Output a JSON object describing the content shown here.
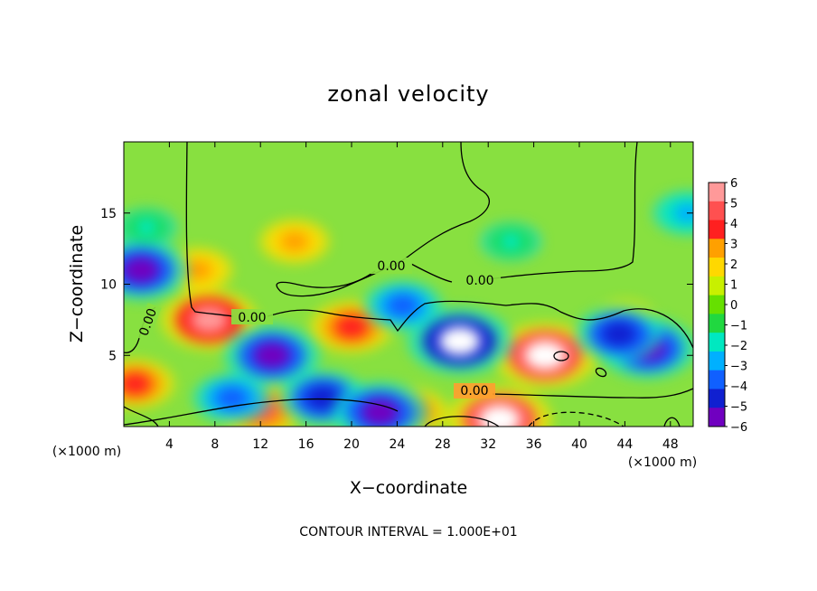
{
  "chart_data": {
    "type": "heatmap",
    "title": "zonal velocity",
    "xlabel": "X−coordinate",
    "ylabel": "Z−coordinate",
    "x_unit": "(×1000 m)",
    "z_unit": "(×1000 m)",
    "xlim": [
      0,
      50
    ],
    "ylim": [
      0,
      20
    ],
    "x_ticks": [
      4,
      8,
      12,
      16,
      20,
      24,
      28,
      32,
      36,
      40,
      44,
      48
    ],
    "y_ticks": [
      5,
      10,
      15
    ],
    "colorbar": {
      "min": -6,
      "max": 6,
      "ticks": [
        "6",
        "5",
        "4",
        "3",
        "2",
        "1",
        "0",
        "−1",
        "−2",
        "−3",
        "−4",
        "−5",
        "−6"
      ],
      "colors": [
        "#ff9999",
        "#ff5050",
        "#ff2020",
        "#ffa000",
        "#ffd800",
        "#c8f000",
        "#66e000",
        "#20d840",
        "#00e8c0",
        "#00b0ff",
        "#1060ff",
        "#1020d0",
        "#7000c0"
      ]
    },
    "contour_labels": [
      "0.00",
      "0.00",
      "0.00",
      "0.00",
      "0.00"
    ],
    "features": [
      {
        "name": "positive max",
        "x": 7.5,
        "z": 7.5,
        "value": 6
      },
      {
        "name": "positive",
        "x": 6.5,
        "z": 11,
        "value": 3
      },
      {
        "name": "positive",
        "x": 15,
        "z": 13,
        "value": 3
      },
      {
        "name": "positive",
        "x": 20,
        "z": 7,
        "value": 4.5
      },
      {
        "name": "positive",
        "x": 12,
        "z": 1.2,
        "value": 5
      },
      {
        "name": "positive",
        "x": 1,
        "z": 3,
        "value": 4
      },
      {
        "name": "positive",
        "x": 37,
        "z": 5,
        "value": 7
      },
      {
        "name": "positive",
        "x": 33,
        "z": 0.5,
        "value": 7
      },
      {
        "name": "positive",
        "x": 25,
        "z": 1,
        "value": 4
      },
      {
        "name": "positive",
        "x": 44,
        "z": 7.5,
        "value": 2
      },
      {
        "name": "negative",
        "x": 1.5,
        "z": 11,
        "value": -6
      },
      {
        "name": "negative",
        "x": 13,
        "z": 5,
        "value": -6
      },
      {
        "name": "negative",
        "x": 17.5,
        "z": 2,
        "value": -5
      },
      {
        "name": "negative",
        "x": 22.5,
        "z": 1,
        "value": -6
      },
      {
        "name": "negative",
        "x": 29.5,
        "z": 6,
        "value": -7
      },
      {
        "name": "negative",
        "x": 46,
        "z": 5.5,
        "value": -6
      },
      {
        "name": "negative",
        "x": 43.5,
        "z": 6.5,
        "value": -5
      },
      {
        "name": "negative",
        "x": 9.5,
        "z": 2,
        "value": -4
      },
      {
        "name": "negative",
        "x": 34,
        "z": 13,
        "value": -2
      },
      {
        "name": "negative",
        "x": 24.5,
        "z": 8.5,
        "value": -4
      },
      {
        "name": "negative",
        "x": 49.5,
        "z": 15,
        "value": -3
      },
      {
        "name": "negative",
        "x": 2,
        "z": 14,
        "value": -2
      }
    ],
    "grid": false,
    "legend_placement": "right colorbar"
  },
  "note": "CONTOUR INTERVAL = 1.000E+01"
}
